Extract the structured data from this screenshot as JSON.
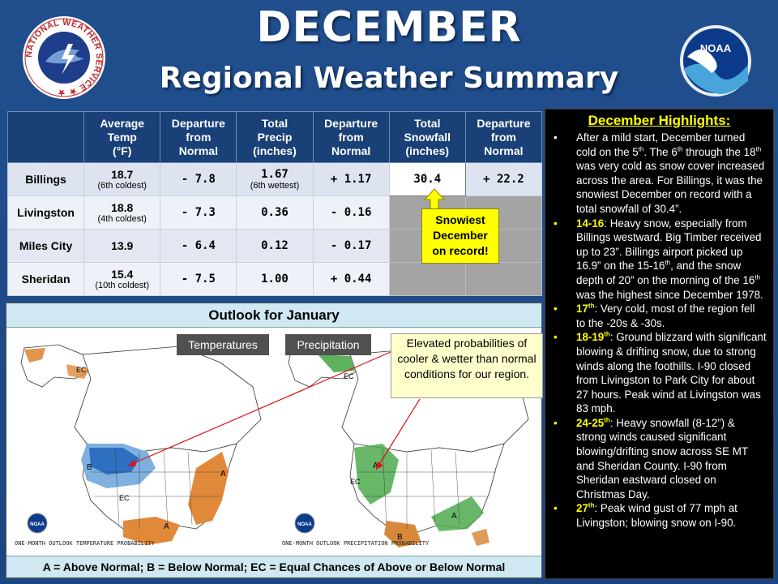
{
  "header": {
    "title": "DECEMBER",
    "subtitle": "Regional Weather Summary"
  },
  "logos": {
    "left": "National Weather Service",
    "right": "NOAA"
  },
  "table": {
    "columns": [
      "",
      "Average Temp (°F)",
      "Departure from Normal",
      "Total Precip (inches)",
      "Departure from Normal",
      "Total Snowfall (inches)",
      "Departure from Normal"
    ],
    "col_lines": [
      [
        "Average",
        "Temp",
        "(°F)"
      ],
      [
        "Departure",
        "from",
        "Normal"
      ],
      [
        "Total",
        "Precip",
        "(inches)"
      ],
      [
        "Departure",
        "from",
        "Normal"
      ],
      [
        "Total",
        "Snowfall",
        "(inches)"
      ],
      [
        "Departure",
        "from",
        "Normal"
      ]
    ],
    "rows": [
      {
        "city": "Billings",
        "temp": "18.7",
        "temp_rank": "(6th coldest)",
        "temp_dep": "- 7.8",
        "precip": "1.67",
        "precip_rank": "(6th wettest)",
        "precip_dep": "+ 1.17",
        "snow": "30.4",
        "snow_dep": "+ 22.2"
      },
      {
        "city": "Livingston",
        "temp": "18.8",
        "temp_rank": "(4th coldest)",
        "temp_dep": "- 7.3",
        "precip": "0.36",
        "precip_rank": "",
        "precip_dep": "- 0.16",
        "snow": "",
        "snow_dep": ""
      },
      {
        "city": "Miles City",
        "temp": "13.9",
        "temp_rank": "",
        "temp_dep": "- 6.4",
        "precip": "0.12",
        "precip_rank": "",
        "precip_dep": "- 0.17",
        "snow": "",
        "snow_dep": ""
      },
      {
        "city": "Sheridan",
        "temp": "15.4",
        "temp_rank": "(10th coldest)",
        "temp_dep": "- 7.5",
        "precip": "1.00",
        "precip_rank": "",
        "precip_dep": "+ 0.44",
        "snow": "",
        "snow_dep": ""
      }
    ],
    "callout": "Snowiest December on record!",
    "callout_lines": [
      "Snowiest",
      "December",
      "on record!"
    ]
  },
  "highlights": {
    "title": "December Highlights:",
    "items": [
      {
        "date": "",
        "text": "After a mild start, December turned cold on the 5th. The 6th through the 18th was very cold as snow cover increased across the area. For Billings, it was the snowiest December on record with a total snowfall of 30.4\"."
      },
      {
        "date": "14-16",
        "text": ": Heavy snow, especially from Billings westward. Big Timber received up to 23\". Billings airport picked up 16.9\" on the 15-16th, and the snow depth of 20\" on the morning of the 16th was the highest since December 1978."
      },
      {
        "date": "17th",
        "text": ": Very cold, most of the region fell to the -20s & -30s."
      },
      {
        "date": "18-19th",
        "text": ": Ground blizzard with significant blowing & drifting snow, due to strong winds along the foothills. I-90 closed from Livingston to Park City for about 27 hours. Peak wind at Livingston was 83 mph."
      },
      {
        "date": "24-25th",
        "text": ": Heavy snowfall (8-12\") & strong winds caused significant blowing/drifting snow across SE MT and Sheridan County. I-90 from Sheridan eastward closed on Christmas Day."
      },
      {
        "date": "27th",
        "text": ": Peak wind gust of 77 mph at Livingston; blowing snow on I-90."
      }
    ]
  },
  "outlook": {
    "title": "Outlook for January",
    "temp_label": "Temperatures",
    "precip_label": "Precipitation",
    "elevated_note": "Elevated probabilities of cooler & wetter than normal conditions for our region.",
    "legend": "A = Above Normal;  B = Below Normal;  EC = Equal Chances of Above or Below Normal",
    "temp_caption": "ONE-MONTH OUTLOOK TEMPERATURE PROBABILITY",
    "precip_caption": "ONE-MONTH OUTLOOK PRECIPITATION PROBABILITY",
    "colors": {
      "cold": "#2f6fc0",
      "warm": "#e0893a",
      "wet": "#4daa4d",
      "dry": "#d8883a"
    }
  }
}
